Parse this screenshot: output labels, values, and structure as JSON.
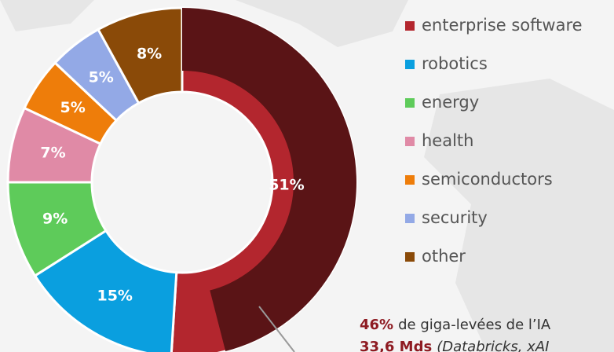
{
  "chart_data": {
    "type": "donut",
    "categories": [
      "enterprise software",
      "robotics",
      "energy",
      "health",
      "semiconductors",
      "security",
      "other"
    ],
    "values": [
      51,
      15,
      9,
      7,
      5,
      5,
      8
    ],
    "value_labels": [
      "51%",
      "15%",
      "9%",
      "7%",
      "5%",
      "5%",
      "8%"
    ],
    "colors": [
      "#b3262e",
      "#0a9fdf",
      "#5ecb5a",
      "#e08aa6",
      "#ee7d0a",
      "#93a9e6",
      "#8a4a08"
    ],
    "annotation": {
      "value": 46,
      "value_label": "46%",
      "color": "#5a1416",
      "text": "de giga-levées de l’IA",
      "detail_value": "33,6 Mds",
      "detail_text": "(Databricks, xAI"
    }
  }
}
